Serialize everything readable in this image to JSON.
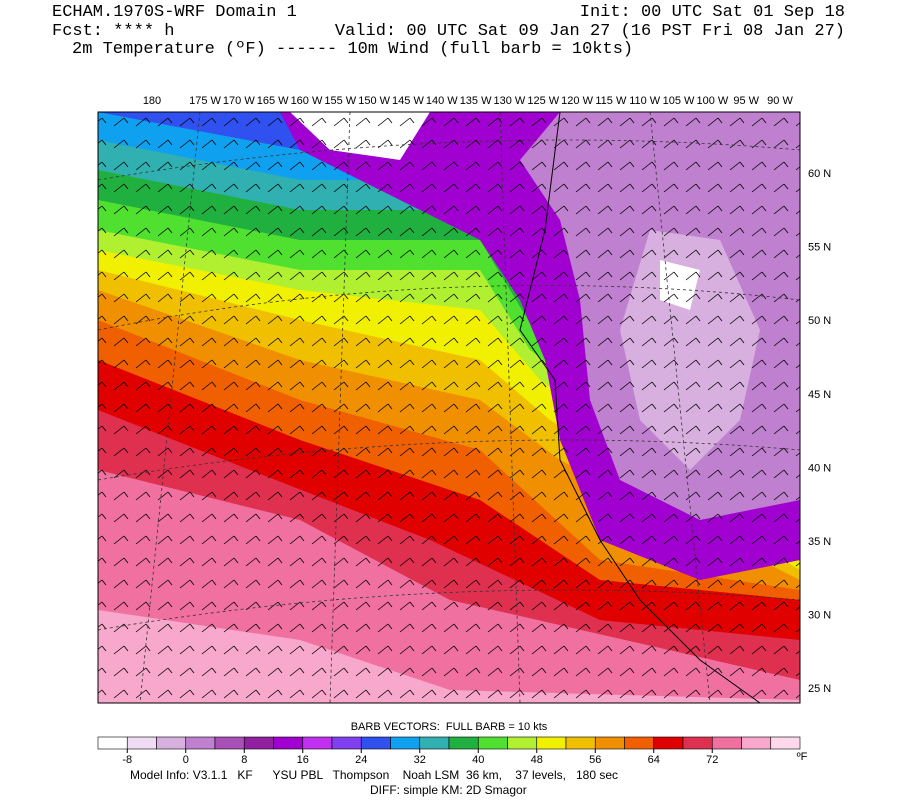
{
  "header": {
    "left_line1": "ECHAM.1970S-WRF Domain 1",
    "right_line1": "Init: 00 UTC Sat 01 Sep 18",
    "left_line2": "Fcst: **** h",
    "right_line2": "Valid: 00 UTC Sat 09 Jan 27 (16 PST Fri 08 Jan 27)",
    "line3": "2m Temperature (ºF) ------ 10m Wind (full barb = 10kts)"
  },
  "map": {
    "longitude_labels": [
      "180",
      "175 W",
      "170 W",
      "165 W",
      "160 W",
      "155 W",
      "150 W",
      "145 W",
      "140 W",
      "135 W",
      "130 W",
      "125 W",
      "120 W",
      "115 W",
      "110 W",
      "105 W",
      "100 W",
      "95 W",
      "90 W"
    ],
    "latitude_labels": [
      "60 N",
      "55 N",
      "50 N",
      "45 N",
      "40 N",
      "35 N",
      "30 N",
      "25 N"
    ]
  },
  "colorbar": {
    "title": "BARB VECTORS:  FULL BARB = 10 kts",
    "unit": "ºF",
    "clim": [
      -12,
      84
    ],
    "colors": [
      "#ffffff",
      "#f0dcf4",
      "#d8b0e0",
      "#c080d0",
      "#a850b8",
      "#9020a0",
      "#a000d0",
      "#c030f0",
      "#8040f0",
      "#3050f0",
      "#10a0f0",
      "#30b0b0",
      "#20b040",
      "#50e030",
      "#b0f030",
      "#f0f000",
      "#f0c000",
      "#f09000",
      "#f06000",
      "#e00000",
      "#e03050",
      "#f070a0",
      "#f8a8cc",
      "#ffd8ec"
    ],
    "ticks": [
      -8,
      0,
      8,
      16,
      24,
      32,
      40,
      48,
      56,
      64,
      72
    ]
  },
  "footer": {
    "line1": "Model Info: V3.1.1   KF      YSU PBL   Thompson    Noah LSM  36 km,    37 levels,   180 sec",
    "line2": "DIFF: simple KM: 2D Smagor"
  }
}
